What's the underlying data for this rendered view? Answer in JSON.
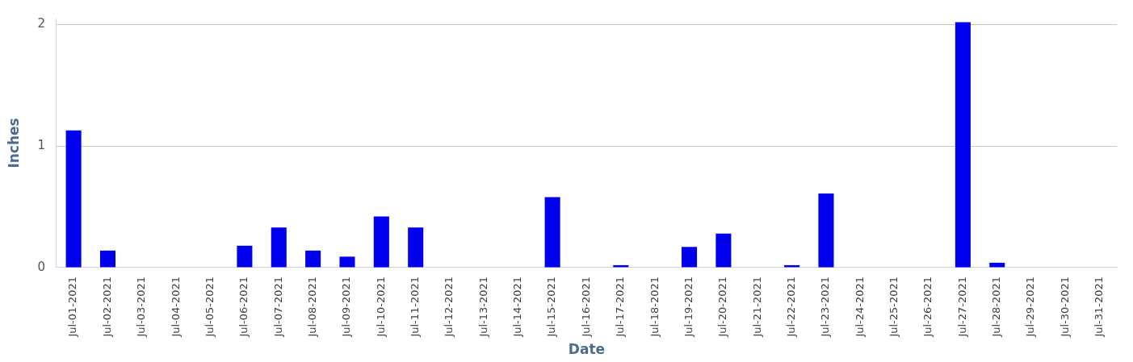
{
  "chart_data": {
    "type": "bar",
    "xlabel": "Date",
    "ylabel": "Inches",
    "categories": [
      "Jul-01-2021",
      "Jul-02-2021",
      "Jul-03-2021",
      "Jul-04-2021",
      "Jul-05-2021",
      "Jul-06-2021",
      "Jul-07-2021",
      "Jul-08-2021",
      "Jul-09-2021",
      "Jul-10-2021",
      "Jul-11-2021",
      "Jul-12-2021",
      "Jul-13-2021",
      "Jul-14-2021",
      "Jul-15-2021",
      "Jul-16-2021",
      "Jul-17-2021",
      "Jul-18-2021",
      "Jul-19-2021",
      "Jul-20-2021",
      "Jul-21-2021",
      "Jul-22-2021",
      "Jul-23-2021",
      "Jul-24-2021",
      "Jul-25-2021",
      "Jul-26-2021",
      "Jul-27-2021",
      "Jul-28-2021",
      "Jul-29-2021",
      "Jul-30-2021",
      "Jul-31-2021"
    ],
    "values": [
      1.13,
      0.14,
      0,
      0,
      0,
      0.18,
      0.33,
      0.14,
      0.09,
      0.42,
      0.33,
      0,
      0,
      0,
      0.58,
      0,
      0.02,
      0,
      0.17,
      0.28,
      0,
      0.02,
      0.61,
      0,
      0,
      0,
      2.02,
      0.04,
      0,
      0,
      0
    ],
    "color": "#0000ee",
    "ylim": [
      0,
      2.05
    ],
    "yticks": [
      0,
      1,
      2
    ],
    "grid": "y",
    "legend": false
  }
}
